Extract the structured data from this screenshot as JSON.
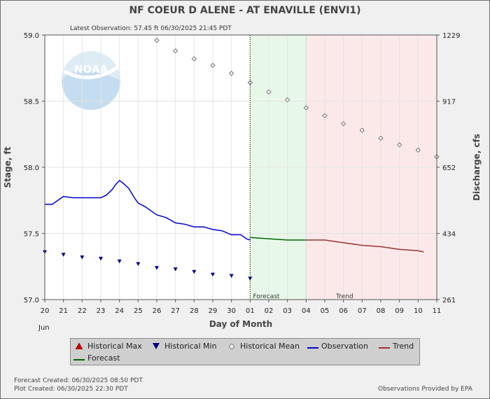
{
  "header": {
    "title": "NF COEUR D ALENE - AT ENAVILLE  (ENVI1)",
    "latest": "Latest Observation:  57.45 ft 06/30/2025 21:45 PDT"
  },
  "chart_data": {
    "type": "line",
    "xlabel": "Day of Month",
    "month_label": "Jun",
    "ylabel_left": "Stage, ft",
    "ylabel_right": "Discharge, cfs",
    "ylim_left": [
      57.0,
      59.0
    ],
    "left_ticks": [
      "57.0",
      "57.5",
      "58.0",
      "58.5",
      "59.0"
    ],
    "right_ticks": [
      "261",
      "434",
      "652",
      "917",
      "1229"
    ],
    "x_ticks": [
      "20",
      "21",
      "22",
      "23",
      "24",
      "25",
      "26",
      "27",
      "28",
      "29",
      "30",
      "01",
      "02",
      "03",
      "04",
      "05",
      "06",
      "07",
      "08",
      "09",
      "10",
      "11"
    ],
    "regions": {
      "forecast_label": "Forecast",
      "trend_label": "Trend",
      "forecast_start": 11,
      "forecast_end": 14,
      "trend_end": 21
    },
    "series": [
      {
        "name": "Observation",
        "color": "#0000cc",
        "x": [
          0,
          0.4,
          0.8,
          1.0,
          1.5,
          2.0,
          2.5,
          2.8,
          3.0,
          3.3,
          3.6,
          3.8,
          4.0,
          4.2,
          4.5,
          4.8,
          5.0,
          5.4,
          5.8,
          6.0,
          6.5,
          7.0,
          7.5,
          8.0,
          8.5,
          9.0,
          9.5,
          10.0,
          10.5,
          10.8,
          11.0
        ],
        "y": [
          57.72,
          57.72,
          57.76,
          57.78,
          57.77,
          57.77,
          57.77,
          57.77,
          57.77,
          57.79,
          57.83,
          57.87,
          57.9,
          57.88,
          57.84,
          57.77,
          57.73,
          57.7,
          57.66,
          57.64,
          57.62,
          57.58,
          57.57,
          57.55,
          57.55,
          57.53,
          57.52,
          57.49,
          57.49,
          57.46,
          57.45
        ]
      },
      {
        "name": "Forecast",
        "color": "#006600",
        "x": [
          11,
          12,
          13,
          14
        ],
        "y": [
          57.47,
          57.46,
          57.45,
          57.45
        ]
      },
      {
        "name": "Trend",
        "color": "#993333",
        "x": [
          14,
          15,
          16,
          17,
          18,
          19,
          20,
          20.3
        ],
        "y": [
          57.45,
          57.45,
          57.43,
          57.41,
          57.4,
          57.38,
          57.37,
          57.36
        ]
      },
      {
        "name": "Historical Mean",
        "color": "#555555",
        "x": [
          6,
          7,
          8,
          9,
          10,
          11,
          12,
          13,
          14,
          15,
          16,
          17,
          18,
          19,
          20,
          21
        ],
        "y": [
          58.96,
          58.88,
          58.82,
          58.77,
          58.71,
          58.64,
          58.57,
          58.51,
          58.45,
          58.39,
          58.33,
          58.28,
          58.22,
          58.17,
          58.13,
          58.08
        ]
      },
      {
        "name": "Historical Min",
        "color": "#000080",
        "x": [
          0,
          1,
          2,
          3,
          4,
          5,
          6,
          7,
          8,
          9,
          10,
          11
        ],
        "y": [
          57.36,
          57.34,
          57.32,
          57.31,
          57.29,
          57.27,
          57.24,
          57.23,
          57.21,
          57.19,
          57.18,
          57.16
        ]
      }
    ]
  },
  "legend": {
    "items": [
      "Historical Max",
      "Historical Min",
      "Historical Mean",
      "Observation",
      "Trend",
      "Forecast"
    ],
    "colors": {
      "max": "#cc0000",
      "min": "#000080",
      "mean": "#555555",
      "obs": "#0000cc",
      "trend": "#993333",
      "forecast": "#006600"
    }
  },
  "footer": {
    "forecast_created": "Forecast Created: 06/30/2025 08:50 PDT",
    "plot_created": "Plot Created: 06/30/2025 22:30 PDT",
    "provider": "Observations Provided by EPA"
  },
  "logo_text": "NOAA"
}
